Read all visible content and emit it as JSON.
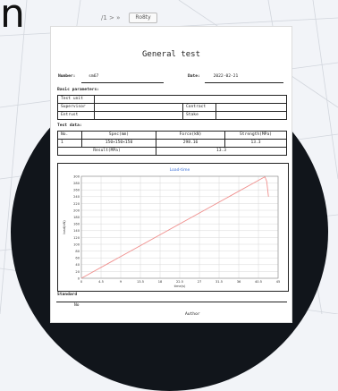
{
  "window": {
    "nav_label": "/1 > »",
    "button_label": "Ro8ty"
  },
  "corner_char": "n",
  "report": {
    "title": "General test",
    "number_label": "Number:",
    "number_value": "sm67",
    "date_label": "Date:",
    "date_value": "2022-02-21",
    "basic_params_label": "Basic parameters:",
    "basic_params": {
      "test_unit": "Test unit",
      "supervisor": "Supervisor",
      "contract": "Contract",
      "entrust": "Entrust",
      "stake": "Stake"
    },
    "test_data_label": "Test data:",
    "table": {
      "headers": [
        "No.",
        "Spec(mm)",
        "Force(kN)",
        "Strength(MPa)"
      ],
      "rows": [
        [
          "1",
          "150×150×150",
          "298.16",
          "13.3"
        ]
      ],
      "result_label": "Result(MPa)",
      "result_value": "13.3"
    },
    "standard_label": "Standard",
    "standard_no": "No",
    "author_label": "Author"
  },
  "chart_data": {
    "type": "line",
    "title": "Load-time",
    "xlabel": "time(s)",
    "ylabel": "load(kN)",
    "xlim": [
      0,
      45
    ],
    "ylim": [
      0,
      300
    ],
    "x_ticks": [
      "0",
      "4.5",
      "9",
      "13.5",
      "18",
      "22.5",
      "27",
      "31.5",
      "36",
      "40.5",
      "45"
    ],
    "y_ticks": [
      "0",
      "20",
      "40",
      "60",
      "80",
      "100",
      "120",
      "140",
      "160",
      "180",
      "200",
      "220",
      "240",
      "260",
      "280",
      "300"
    ],
    "series_color": "#f0908e",
    "series": [
      {
        "x": [
          0,
          41.5,
          42,
          42.4,
          42.8
        ],
        "y": [
          0,
          295,
          298,
          285,
          240
        ]
      }
    ]
  }
}
